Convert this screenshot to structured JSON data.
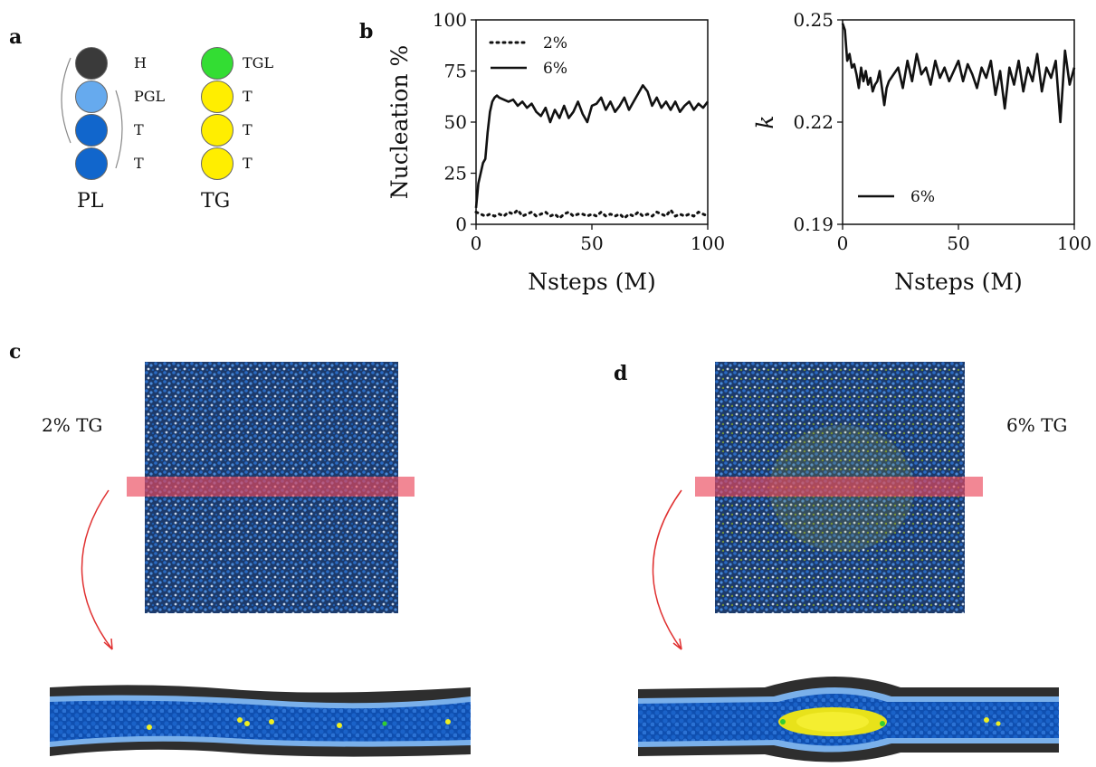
{
  "panels": {
    "a": "a",
    "b": "b",
    "c": "c",
    "d": "d"
  },
  "beads": {
    "PL": {
      "name": "PL",
      "items": [
        {
          "label": "H",
          "color": "#3a3a3a"
        },
        {
          "label": "PGL",
          "color": "#66aaee"
        },
        {
          "label": "T",
          "color": "#1166cc"
        },
        {
          "label": "T",
          "color": "#1166cc"
        }
      ]
    },
    "TG": {
      "name": "TG",
      "items": [
        {
          "label": "TGL",
          "color": "#33dd33"
        },
        {
          "label": "T",
          "color": "#ffee00"
        },
        {
          "label": "T",
          "color": "#ffee00"
        },
        {
          "label": "T",
          "color": "#ffee00"
        }
      ]
    }
  },
  "chart_data": [
    {
      "type": "line",
      "ylabel": "Nucleation %",
      "xlabel": "Nsteps (M)",
      "xlim": [
        0,
        100
      ],
      "ylim": [
        0,
        100
      ],
      "xticks": [
        "0",
        "50",
        "100"
      ],
      "yticks": [
        "0",
        "25",
        "50",
        "75",
        "100"
      ],
      "legend_position": "top-left",
      "series": [
        {
          "name": "2%",
          "style": "dotted",
          "x": [
            0,
            2,
            4,
            6,
            8,
            10,
            12,
            14,
            16,
            18,
            20,
            22,
            24,
            26,
            28,
            30,
            32,
            34,
            36,
            38,
            40,
            42,
            44,
            46,
            48,
            50,
            52,
            54,
            56,
            58,
            60,
            62,
            64,
            66,
            68,
            70,
            72,
            74,
            76,
            78,
            80,
            82,
            84,
            86,
            88,
            90,
            92,
            94,
            96,
            98,
            100
          ],
          "values": [
            6,
            5,
            4,
            5,
            4,
            5,
            4,
            6,
            5,
            7,
            4,
            5,
            6,
            4,
            5,
            6,
            4,
            5,
            3,
            5,
            6,
            4,
            5,
            5,
            4,
            5,
            4,
            6,
            4,
            5,
            4,
            5,
            3,
            5,
            4,
            6,
            4,
            5,
            4,
            6,
            5,
            4,
            7,
            4,
            5,
            4,
            5,
            4,
            6,
            5,
            4
          ]
        },
        {
          "name": "6%",
          "style": "solid",
          "x": [
            0,
            1,
            2,
            3,
            4,
            5,
            6,
            7,
            8,
            9,
            10,
            12,
            14,
            16,
            18,
            20,
            22,
            24,
            26,
            28,
            30,
            32,
            34,
            36,
            38,
            40,
            42,
            44,
            46,
            48,
            50,
            52,
            54,
            56,
            58,
            60,
            62,
            64,
            66,
            68,
            70,
            72,
            74,
            76,
            78,
            80,
            82,
            84,
            86,
            88,
            90,
            92,
            94,
            96,
            98,
            100
          ],
          "values": [
            8,
            20,
            25,
            30,
            32,
            45,
            55,
            60,
            62,
            63,
            62,
            61,
            60,
            61,
            58,
            60,
            57,
            59,
            55,
            53,
            57,
            50,
            56,
            52,
            58,
            52,
            55,
            60,
            54,
            50,
            58,
            59,
            62,
            56,
            60,
            55,
            58,
            62,
            56,
            60,
            64,
            68,
            65,
            58,
            62,
            57,
            60,
            56,
            60,
            55,
            58,
            60,
            56,
            59,
            57,
            60
          ]
        }
      ]
    },
    {
      "type": "line",
      "ylabel": "k",
      "xlabel": "Nsteps (M)",
      "xlim": [
        0,
        100
      ],
      "ylim": [
        0.19,
        0.25
      ],
      "xticks": [
        "0",
        "50",
        "100"
      ],
      "yticks": [
        "0.19",
        "0.22",
        "0.25"
      ],
      "legend_position": "bottom-left",
      "series": [
        {
          "name": "6%",
          "style": "solid",
          "x": [
            0,
            1,
            2,
            3,
            4,
            5,
            6,
            7,
            8,
            9,
            10,
            11,
            12,
            13,
            14,
            15,
            16,
            17,
            18,
            19,
            20,
            22,
            24,
            26,
            28,
            30,
            32,
            34,
            36,
            38,
            40,
            42,
            44,
            46,
            48,
            50,
            52,
            54,
            56,
            58,
            60,
            62,
            64,
            66,
            68,
            70,
            72,
            74,
            76,
            78,
            80,
            82,
            84,
            86,
            88,
            90,
            92,
            94,
            96,
            98,
            100
          ],
          "values": [
            0.249,
            0.247,
            0.238,
            0.24,
            0.236,
            0.237,
            0.234,
            0.23,
            0.236,
            0.232,
            0.235,
            0.231,
            0.233,
            0.229,
            0.231,
            0.232,
            0.235,
            0.23,
            0.225,
            0.23,
            0.232,
            0.234,
            0.236,
            0.23,
            0.238,
            0.232,
            0.24,
            0.234,
            0.236,
            0.231,
            0.238,
            0.233,
            0.236,
            0.232,
            0.235,
            0.238,
            0.232,
            0.237,
            0.234,
            0.23,
            0.236,
            0.233,
            0.238,
            0.228,
            0.235,
            0.224,
            0.236,
            0.231,
            0.238,
            0.229,
            0.236,
            0.232,
            0.24,
            0.229,
            0.236,
            0.233,
            0.238,
            0.22,
            0.241,
            0.231,
            0.236
          ]
        }
      ]
    }
  ],
  "sims": {
    "c": {
      "label": "2% TG"
    },
    "d": {
      "label": "6% TG"
    }
  }
}
